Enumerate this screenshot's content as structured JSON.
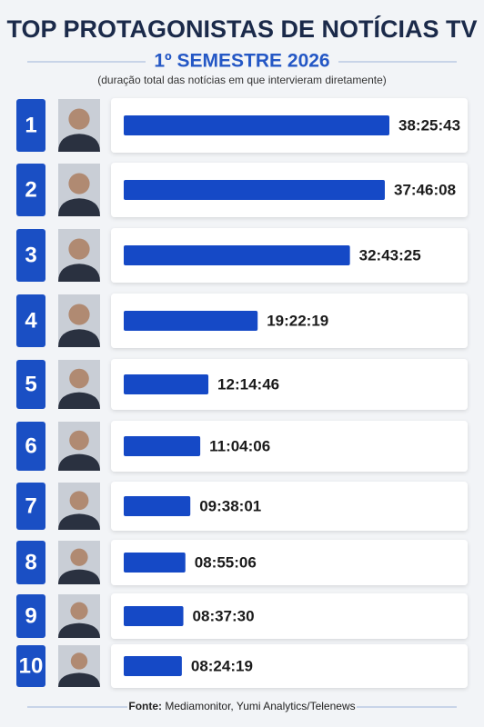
{
  "chart_data": {
    "type": "bar",
    "orientation": "horizontal",
    "title": "TOP PROTAGONISTAS DE NOTÍCIAS TV",
    "subtitle": "1º SEMESTRE 2026",
    "note": "(duração total das notícias em que intervieram diretamente)",
    "categories": [
      "1",
      "2",
      "3",
      "4",
      "5",
      "6",
      "7",
      "8",
      "9",
      "10"
    ],
    "values": [
      138343,
      135968,
      117805,
      69739,
      44086,
      39846,
      34681,
      32106,
      31050,
      30259
    ],
    "value_labels": [
      "38:25:43",
      "37:46:08",
      "32:43:25",
      "19:22:19",
      "12:14:46",
      "11:04:06",
      "09:38:01",
      "08:55:06",
      "08:37:30",
      "08:24:19"
    ],
    "color": "#1549c6",
    "source_label": "Fonte:",
    "source": "Mediamonitor, Yumi Analytics/Telenews"
  }
}
